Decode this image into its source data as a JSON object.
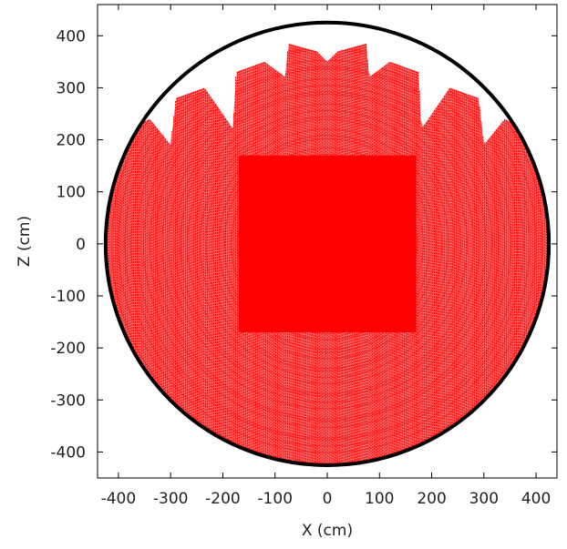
{
  "chart_data": {
    "type": "scatter",
    "title": "",
    "xlabel": "X (cm)",
    "ylabel": "Z (cm)",
    "xlim": [
      -440,
      440
    ],
    "ylim": [
      -450,
      460
    ],
    "xticks": [
      -400,
      -300,
      -200,
      -100,
      0,
      100,
      200,
      300,
      400
    ],
    "yticks": [
      -400,
      -300,
      -200,
      -100,
      0,
      100,
      200,
      300,
      400
    ],
    "xtick_labels": [
      "-400",
      "-300",
      "-200",
      "-100",
      "0",
      "100",
      "200",
      "300",
      "400"
    ],
    "ytick_labels": [
      "-400",
      "-300",
      "-200",
      "-100",
      "0",
      "100",
      "200",
      "300",
      "400"
    ],
    "grid": false,
    "legend": "none",
    "colors": {
      "points": "#ff0000",
      "boundary": "#000000",
      "axes": "#000000"
    },
    "series": [
      {
        "kind": "boundary_circle",
        "center": [
          0,
          0
        ],
        "radius": 425
      },
      {
        "kind": "filled_point_region",
        "description_shape": "dense points filling the circle, with a solid core about |x|<170, |z|<170 and a scalloped top edge",
        "top_profile": [
          {
            "x": -415,
            "z": 150
          },
          {
            "x": -400,
            "z": 150
          },
          {
            "x": -395,
            "z": 210
          },
          {
            "x": -340,
            "z": 240
          },
          {
            "x": -300,
            "z": 190
          },
          {
            "x": -290,
            "z": 280
          },
          {
            "x": -235,
            "z": 300
          },
          {
            "x": -180,
            "z": 220
          },
          {
            "x": -175,
            "z": 330
          },
          {
            "x": -120,
            "z": 350
          },
          {
            "x": -80,
            "z": 320
          },
          {
            "x": -75,
            "z": 385
          },
          {
            "x": -20,
            "z": 370
          },
          {
            "x": 0,
            "z": 350
          },
          {
            "x": 20,
            "z": 370
          },
          {
            "x": 75,
            "z": 385
          },
          {
            "x": 80,
            "z": 320
          },
          {
            "x": 120,
            "z": 350
          },
          {
            "x": 175,
            "z": 330
          },
          {
            "x": 180,
            "z": 220
          },
          {
            "x": 235,
            "z": 300
          },
          {
            "x": 290,
            "z": 280
          },
          {
            "x": 300,
            "z": 190
          },
          {
            "x": 340,
            "z": 240
          },
          {
            "x": 395,
            "z": 210
          },
          {
            "x": 400,
            "z": 150
          },
          {
            "x": 415,
            "z": 150
          }
        ],
        "core": {
          "x": [
            -170,
            170
          ],
          "z": [
            -170,
            170
          ]
        }
      }
    ]
  }
}
